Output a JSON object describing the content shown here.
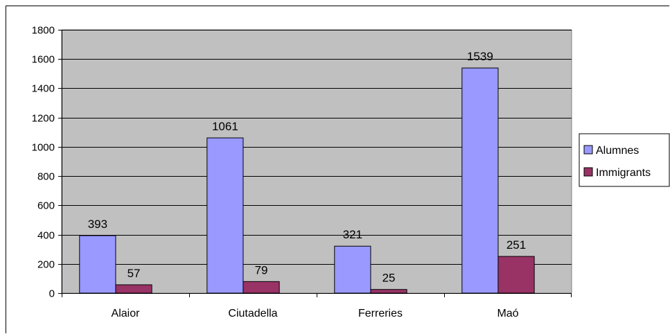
{
  "chart_data": {
    "type": "bar",
    "title": "",
    "xlabel": "",
    "ylabel": "",
    "categories": [
      "Alaior",
      "Ciutadella",
      "Ferreries",
      "Maó"
    ],
    "series": [
      {
        "name": "Alumnes",
        "values": [
          393,
          1061,
          321,
          1539
        ],
        "color": "#9999ff"
      },
      {
        "name": "Immigrants",
        "values": [
          57,
          79,
          25,
          251
        ],
        "color": "#993366"
      }
    ],
    "ylim": [
      0,
      1800
    ],
    "yticks": [
      0,
      200,
      400,
      600,
      800,
      1000,
      1200,
      1400,
      1600,
      1800
    ],
    "grid": true,
    "plot_background": "#c0c0c0",
    "legend_position": "right"
  }
}
